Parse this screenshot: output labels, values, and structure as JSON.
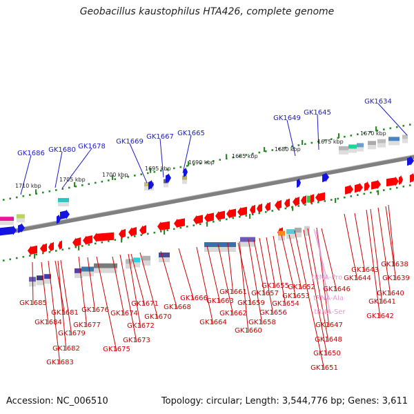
{
  "page": {
    "title": "Geobacillus kaustophilus HTA426, complete genome",
    "accession": "Accession: NC_006510",
    "summary": "Topology: circular; Length: 3,544,776 bp; Genes: 3,611"
  },
  "colors": {
    "background": "#ffffff",
    "backbone": "#808080",
    "scale_tick": "#2a8a2a",
    "top_label": "#1a1acc",
    "bottom_label": "#cc0000",
    "rna_label": "#e39ad0"
  },
  "kbp_marks": [
    "1710 kbp",
    "1705 kbp",
    "1700 kbp",
    "1695 kbp",
    "1690 kbp",
    "1685 kbp",
    "1680 kbp",
    "1675 kbp",
    "1670 kbp"
  ],
  "top_genes": [
    "GK1686",
    "GK1680",
    "GK1678",
    "GK1669",
    "GK1667",
    "GK1665",
    "GK1649",
    "GK1645",
    "GK1634"
  ],
  "bottom_genes": [
    "GK1685",
    "GK1684",
    "GK1681",
    "GK1682",
    "GK1679",
    "GK1683",
    "GK1677",
    "GK1676",
    "GK1675",
    "GK1674",
    "GK1673",
    "GK1671",
    "GK1672",
    "GK1670",
    "GK1668",
    "GK1666",
    "GK1664",
    "GK1663",
    "GK1662",
    "GK1661",
    "GK1660",
    "GK1659",
    "GK1658",
    "GK1657",
    "GK1656",
    "GK1655",
    "GK1654",
    "GK1653",
    "GK1652",
    "GK1651",
    "GK1650",
    "GK1648",
    "GK1647",
    "GK1646",
    "GK1644",
    "GK1643",
    "GK1642",
    "GK1641",
    "GK1640",
    "GK1639",
    "GK1638"
  ],
  "rna_genes": [
    "tRNA-Pro",
    "tRNA-Ala",
    "tRNA-Ser"
  ]
}
